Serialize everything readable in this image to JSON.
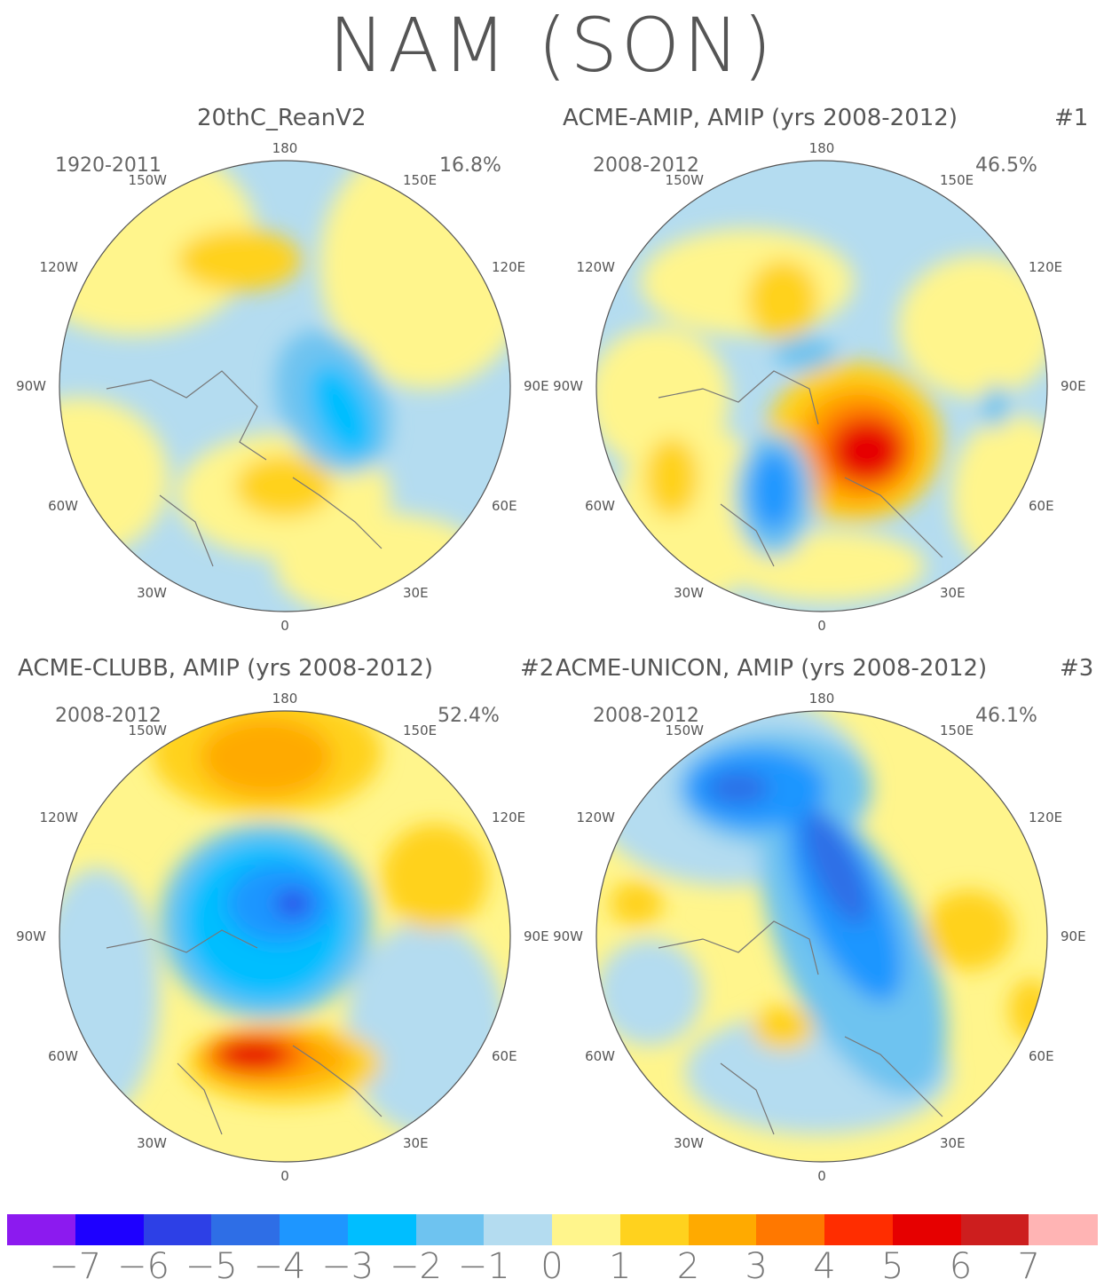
{
  "title": "NAM (SON)",
  "panels": [
    {
      "title": "20thC_ReanV2",
      "number": "",
      "period": "1920-2011",
      "percent": "16.8%"
    },
    {
      "title": "ACME-AMIP, AMIP (yrs 2008-2012)",
      "number": "#1",
      "period": "2008-2012",
      "percent": "46.5%"
    },
    {
      "title": "ACME-CLUBB, AMIP (yrs 2008-2012)",
      "number": "#2",
      "period": "2008-2012",
      "percent": "52.4%"
    },
    {
      "title": "ACME-UNICON, AMIP (yrs 2008-2012)",
      "number": "#3",
      "period": "2008-2012",
      "percent": "46.1%"
    }
  ],
  "longitude_labels": {
    "top": "180",
    "bottom": "0",
    "upper_left": "150W",
    "upper_right": "150E",
    "left_high": "120W",
    "right_high": "120E",
    "left_mid": "90W",
    "right_mid": "90E",
    "left_low": "60W",
    "right_low": "60E",
    "lower_left": "30W",
    "lower_right": "30E"
  },
  "colorbar": {
    "colors": [
      "#8c1aef",
      "#1e00ff",
      "#2d40e6",
      "#2e6ee6",
      "#1e96ff",
      "#00beff",
      "#6ec3f0",
      "#b4dcf0",
      "#fff58c",
      "#ffd21e",
      "#ffaa00",
      "#ff7800",
      "#ff2d00",
      "#e60000",
      "#cd1e1e",
      "#ffb4b4"
    ],
    "ticks": [
      "-7",
      "-6",
      "-5",
      "-4",
      "-3",
      "-2",
      "-1",
      "0",
      "1",
      "2",
      "3",
      "4",
      "5",
      "6",
      "7"
    ]
  }
}
